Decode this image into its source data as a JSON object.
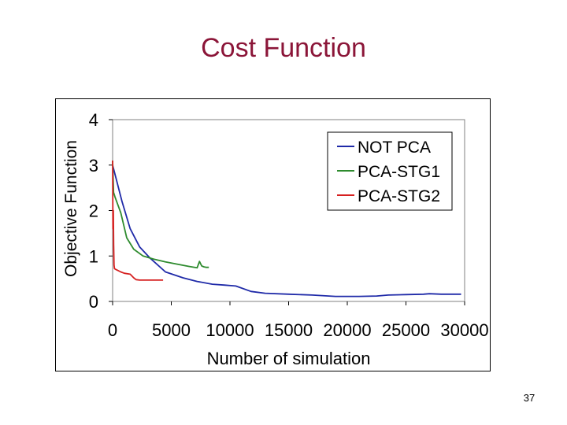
{
  "slide": {
    "title": "Cost Function",
    "page_number": "37"
  },
  "chart_data": {
    "type": "line",
    "title": "",
    "xlabel": "Number of simulation",
    "ylabel": "Objective Function",
    "xlim": [
      0,
      30000
    ],
    "ylim": [
      0,
      4
    ],
    "xticks": [
      "0",
      "5000",
      "10000",
      "15000",
      "20000",
      "25000",
      "30000"
    ],
    "yticks": [
      "0",
      "1",
      "2",
      "3",
      "4"
    ],
    "legend_position": "top-right",
    "series": [
      {
        "name": "NOT PCA",
        "color": "#1f2aa8",
        "x": [
          0,
          300,
          800,
          1500,
          2300,
          3200,
          4500,
          6000,
          7200,
          8500,
          9500,
          10500,
          11800,
          13000,
          15000,
          17000,
          19000,
          21000,
          22500,
          23500,
          25000,
          26500,
          27000,
          28000,
          29700
        ],
        "y": [
          3.0,
          2.7,
          2.2,
          1.6,
          1.2,
          0.95,
          0.65,
          0.52,
          0.44,
          0.38,
          0.36,
          0.34,
          0.22,
          0.18,
          0.16,
          0.14,
          0.11,
          0.11,
          0.12,
          0.14,
          0.15,
          0.16,
          0.17,
          0.16,
          0.16
        ]
      },
      {
        "name": "PCA-STG1",
        "color": "#2e8b2e",
        "x": [
          0,
          80,
          200,
          700,
          1200,
          1800,
          2600,
          3500,
          4500,
          5500,
          6500,
          7200,
          7400,
          7600,
          7800,
          8000,
          8200
        ],
        "y": [
          3.1,
          2.4,
          2.3,
          1.95,
          1.4,
          1.15,
          1.0,
          0.93,
          0.87,
          0.82,
          0.77,
          0.74,
          0.88,
          0.78,
          0.76,
          0.75,
          0.75
        ]
      },
      {
        "name": "PCA-STG2",
        "color": "#d62020",
        "x": [
          0,
          30,
          60,
          90,
          120,
          160,
          300,
          700,
          1000,
          1500,
          1800,
          2000,
          2300,
          3000,
          4300
        ],
        "y": [
          3.1,
          1.6,
          2.0,
          1.25,
          0.8,
          0.72,
          0.7,
          0.65,
          0.62,
          0.6,
          0.52,
          0.48,
          0.47,
          0.47,
          0.47
        ]
      }
    ]
  }
}
